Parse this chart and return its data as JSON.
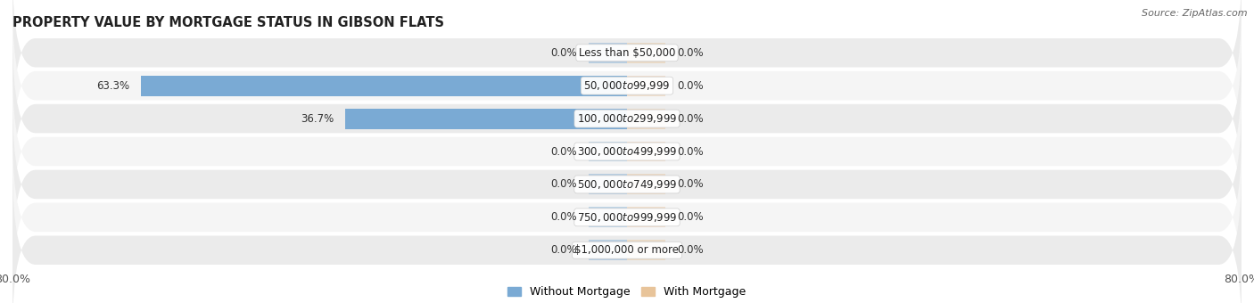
{
  "title": "PROPERTY VALUE BY MORTGAGE STATUS IN GIBSON FLATS",
  "source": "Source: ZipAtlas.com",
  "categories": [
    "Less than $50,000",
    "$50,000 to $99,999",
    "$100,000 to $299,999",
    "$300,000 to $499,999",
    "$500,000 to $749,999",
    "$750,000 to $999,999",
    "$1,000,000 or more"
  ],
  "without_mortgage": [
    0.0,
    63.3,
    36.7,
    0.0,
    0.0,
    0.0,
    0.0
  ],
  "with_mortgage": [
    0.0,
    0.0,
    0.0,
    0.0,
    0.0,
    0.0,
    0.0
  ],
  "color_without": "#7aaad4",
  "color_with": "#e8c49a",
  "row_bg_odd": "#ebebeb",
  "row_bg_even": "#f5f5f5",
  "x_min": -80.0,
  "x_max": 80.0,
  "legend_without": "Without Mortgage",
  "legend_with": "With Mortgage",
  "title_fontsize": 10.5,
  "source_fontsize": 8,
  "label_fontsize": 8.5,
  "cat_fontsize": 8.5,
  "tick_fontsize": 9,
  "stub_size": 5.0
}
